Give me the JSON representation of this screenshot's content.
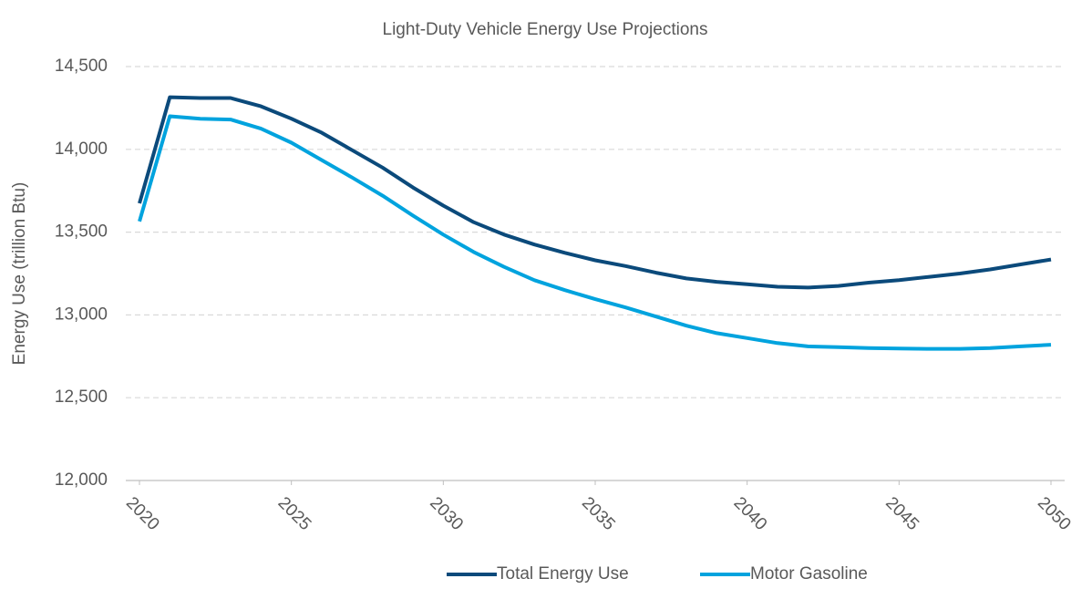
{
  "chart_data": {
    "type": "line",
    "title": "Light-Duty Vehicle Energy Use Projections",
    "y_label": "Energy Use (trillion Btu)",
    "x": [
      2020,
      2021,
      2022,
      2023,
      2024,
      2025,
      2026,
      2027,
      2028,
      2029,
      2030,
      2031,
      2032,
      2033,
      2034,
      2035,
      2036,
      2037,
      2038,
      2039,
      2040,
      2041,
      2042,
      2043,
      2044,
      2045,
      2046,
      2047,
      2048,
      2049,
      2050
    ],
    "series": [
      {
        "name": "Total Energy Use",
        "color": "#0b4a7b",
        "values": [
          13674,
          14315,
          14310,
          14310,
          14260,
          14185,
          14100,
          13995,
          13890,
          13770,
          13660,
          13560,
          13485,
          13425,
          13375,
          13330,
          13295,
          13255,
          13220,
          13200,
          13185,
          13170,
          13165,
          13175,
          13195,
          13210,
          13230,
          13250,
          13275,
          13305,
          13335
        ]
      },
      {
        "name": "Motor Gasoline",
        "color": "#00a3de",
        "values": [
          13565,
          14200,
          14185,
          14180,
          14125,
          14040,
          13935,
          13830,
          13720,
          13600,
          13485,
          13380,
          13290,
          13210,
          13150,
          13095,
          13045,
          12990,
          12935,
          12890,
          12860,
          12830,
          12810,
          12805,
          12800,
          12797,
          12795,
          12795,
          12800,
          12810,
          12820
        ]
      }
    ],
    "xlim": [
      2019.55,
      2050.45
    ],
    "xticks": [
      2020,
      2025,
      2030,
      2035,
      2040,
      2045,
      2050
    ],
    "ylim": [
      12000,
      14500
    ],
    "yticks": [
      {
        "value": 12000,
        "label": "12,000"
      },
      {
        "value": 12500,
        "label": "12,500"
      },
      {
        "value": 13000,
        "label": "13,000"
      },
      {
        "value": 13500,
        "label": "13,500"
      },
      {
        "value": 14000,
        "label": "14,000"
      },
      {
        "value": 14500,
        "label": "14,500"
      }
    ],
    "grid": true,
    "legend": "bottom"
  }
}
